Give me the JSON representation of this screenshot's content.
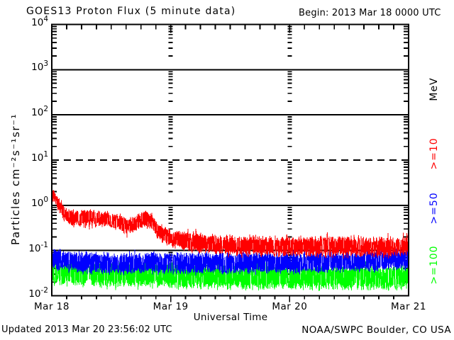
{
  "footer": {
    "updated": "Updated 2013 Mar 20 23:56:02 UTC",
    "credit": "NOAA/SWPC Boulder, CO USA"
  },
  "chart_data": {
    "type": "line",
    "title": "GOES13 Proton Flux (5 minute data)",
    "begin_label": "Begin: 2013 Mar 18 0000 UTC",
    "xlabel": "Universal Time",
    "ylabel": "Particles cm⁻²s⁻¹sr⁻¹",
    "right_axis_unit": "MeV",
    "x_ticks": [
      "Mar 18",
      "Mar 19",
      "Mar 20",
      "Mar 21"
    ],
    "x_range_hours": 72,
    "ylim_log": [
      -2,
      4
    ],
    "y_tick_exponents": [
      4,
      3,
      2,
      1,
      0,
      -1,
      -2
    ],
    "grid_solid_exps": [
      3,
      2,
      0,
      -1
    ],
    "grid_dashed_exps": [
      1
    ],
    "day_boundary_hours": [
      24,
      48
    ],
    "minor_tick_hours": 3,
    "sample_minutes": 5,
    "noise_seed": 11,
    "legend": [
      {
        "label": "MeV",
        "color": "#000000"
      },
      {
        "label": ">=10",
        "color": "#ff0000"
      },
      {
        "label": ">=50",
        "color": "#0000ff"
      },
      {
        "label": ">=100",
        "color": "#00ff00"
      }
    ],
    "series": [
      {
        "name": ">=100 MeV",
        "color": "#00ff00",
        "floor": 0.013,
        "anchors": [
          [
            0,
            0.032
          ],
          [
            12,
            0.03
          ],
          [
            24,
            0.028
          ],
          [
            48,
            0.026
          ],
          [
            72,
            0.025
          ]
        ],
        "sigma_anchors": [
          [
            0,
            0.2
          ],
          [
            72,
            0.2
          ]
        ],
        "spike_prob": 0.06,
        "spike_mult": 1.3
      },
      {
        "name": ">=50 MeV",
        "color": "#0000ff",
        "floor": 0.027,
        "anchors": [
          [
            0,
            0.068
          ],
          [
            1,
            0.063
          ],
          [
            3,
            0.058
          ],
          [
            6,
            0.054
          ],
          [
            12,
            0.052
          ],
          [
            24,
            0.053
          ],
          [
            36,
            0.053
          ],
          [
            48,
            0.054
          ],
          [
            60,
            0.057
          ],
          [
            66,
            0.06
          ],
          [
            72,
            0.066
          ]
        ],
        "sigma_anchors": [
          [
            0,
            0.17
          ],
          [
            72,
            0.175
          ]
        ],
        "spike_prob": 0.05,
        "spike_mult": 1.2
      },
      {
        "name": ">=10 MeV",
        "color": "#ff0000",
        "floor": 0.066,
        "anchors": [
          [
            0,
            1.5
          ],
          [
            0.35,
            1.6
          ],
          [
            0.8,
            1.35
          ],
          [
            1.3,
            1.05
          ],
          [
            1.8,
            0.88
          ],
          [
            2.5,
            0.7
          ],
          [
            3.2,
            0.58
          ],
          [
            4,
            0.52
          ],
          [
            5,
            0.5
          ],
          [
            7,
            0.56
          ],
          [
            9,
            0.54
          ],
          [
            11,
            0.48
          ],
          [
            13,
            0.43
          ],
          [
            15,
            0.35
          ],
          [
            17,
            0.38
          ],
          [
            18.5,
            0.5
          ],
          [
            20,
            0.45
          ],
          [
            21.5,
            0.26
          ],
          [
            24,
            0.19
          ],
          [
            28,
            0.155
          ],
          [
            31,
            0.145
          ],
          [
            34,
            0.135
          ],
          [
            38,
            0.13
          ],
          [
            44,
            0.125
          ],
          [
            50,
            0.122
          ],
          [
            56,
            0.122
          ],
          [
            62,
            0.125
          ],
          [
            68,
            0.12
          ],
          [
            72,
            0.125
          ]
        ],
        "sigma_anchors": [
          [
            0,
            0.1
          ],
          [
            2,
            0.12
          ],
          [
            4,
            0.13
          ],
          [
            20,
            0.13
          ],
          [
            22,
            0.14
          ],
          [
            30,
            0.16
          ],
          [
            72,
            0.165
          ]
        ],
        "spike_prob": 0.05,
        "spike_mult": 1.4
      }
    ]
  }
}
